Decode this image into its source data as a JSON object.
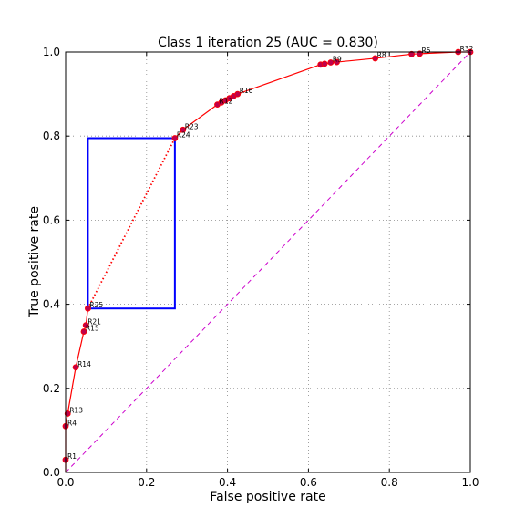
{
  "chart_data": {
    "type": "line",
    "title": "Class 1 iteration 25 (AUC = 0.830)",
    "xlabel": "False positive rate",
    "ylabel": "True positive rate",
    "xlim": [
      0,
      1
    ],
    "ylim": [
      0,
      1
    ],
    "grid": true,
    "x_ticks": [
      "0.0",
      "0.2",
      "0.4",
      "0.6",
      "0.8",
      "1.0"
    ],
    "y_ticks": [
      "0.0",
      "0.2",
      "0.4",
      "0.6",
      "0.8",
      "1.0"
    ],
    "colors": {
      "curve": "#ff0000",
      "marker": "#c0004a",
      "diagonal": "#cc00cc",
      "box": "#0000ff",
      "grid": "#888888"
    },
    "roc_curve": [
      {
        "x": 0.0,
        "y": 0.0
      },
      {
        "x": 0.0,
        "y": 0.03
      },
      {
        "x": 0.0,
        "y": 0.11
      },
      {
        "x": 0.005,
        "y": 0.14
      },
      {
        "x": 0.025,
        "y": 0.25
      },
      {
        "x": 0.045,
        "y": 0.335
      },
      {
        "x": 0.05,
        "y": 0.35
      },
      {
        "x": 0.055,
        "y": 0.39
      },
      {
        "x": 0.27,
        "y": 0.795
      },
      {
        "x": 0.29,
        "y": 0.815
      },
      {
        "x": 0.375,
        "y": 0.875
      },
      {
        "x": 0.385,
        "y": 0.88
      },
      {
        "x": 0.395,
        "y": 0.885
      },
      {
        "x": 0.405,
        "y": 0.89
      },
      {
        "x": 0.415,
        "y": 0.895
      },
      {
        "x": 0.425,
        "y": 0.9
      },
      {
        "x": 0.63,
        "y": 0.97
      },
      {
        "x": 0.64,
        "y": 0.972
      },
      {
        "x": 0.655,
        "y": 0.975
      },
      {
        "x": 0.67,
        "y": 0.976
      },
      {
        "x": 0.765,
        "y": 0.985
      },
      {
        "x": 0.855,
        "y": 0.995
      },
      {
        "x": 0.875,
        "y": 0.996
      },
      {
        "x": 0.97,
        "y": 1.0
      },
      {
        "x": 1.0,
        "y": 1.0
      }
    ],
    "point_labels": [
      {
        "label": "R1",
        "x": 0.0,
        "y": 0.03
      },
      {
        "label": "R4",
        "x": 0.0,
        "y": 0.11
      },
      {
        "label": "R13",
        "x": 0.005,
        "y": 0.14
      },
      {
        "label": "R14",
        "x": 0.025,
        "y": 0.25
      },
      {
        "label": "R15",
        "x": 0.045,
        "y": 0.335
      },
      {
        "label": "R21",
        "x": 0.05,
        "y": 0.35
      },
      {
        "label": "R25",
        "x": 0.055,
        "y": 0.39
      },
      {
        "label": "R24",
        "x": 0.27,
        "y": 0.795
      },
      {
        "label": "R23",
        "x": 0.29,
        "y": 0.815
      },
      {
        "label": "R12",
        "x": 0.375,
        "y": 0.875
      },
      {
        "label": "R16",
        "x": 0.425,
        "y": 0.9
      },
      {
        "label": "R9",
        "x": 0.655,
        "y": 0.975
      },
      {
        "label": "R8",
        "x": 0.765,
        "y": 0.985
      },
      {
        "label": "R5",
        "x": 0.875,
        "y": 0.996
      },
      {
        "label": "R32",
        "x": 0.97,
        "y": 1.0
      }
    ],
    "dotted_segment": [
      {
        "x": 0.055,
        "y": 0.39
      },
      {
        "x": 0.27,
        "y": 0.795
      }
    ],
    "highlight_box": {
      "x0": 0.055,
      "x1": 0.27,
      "y0": 0.39,
      "y1": 0.795
    }
  }
}
